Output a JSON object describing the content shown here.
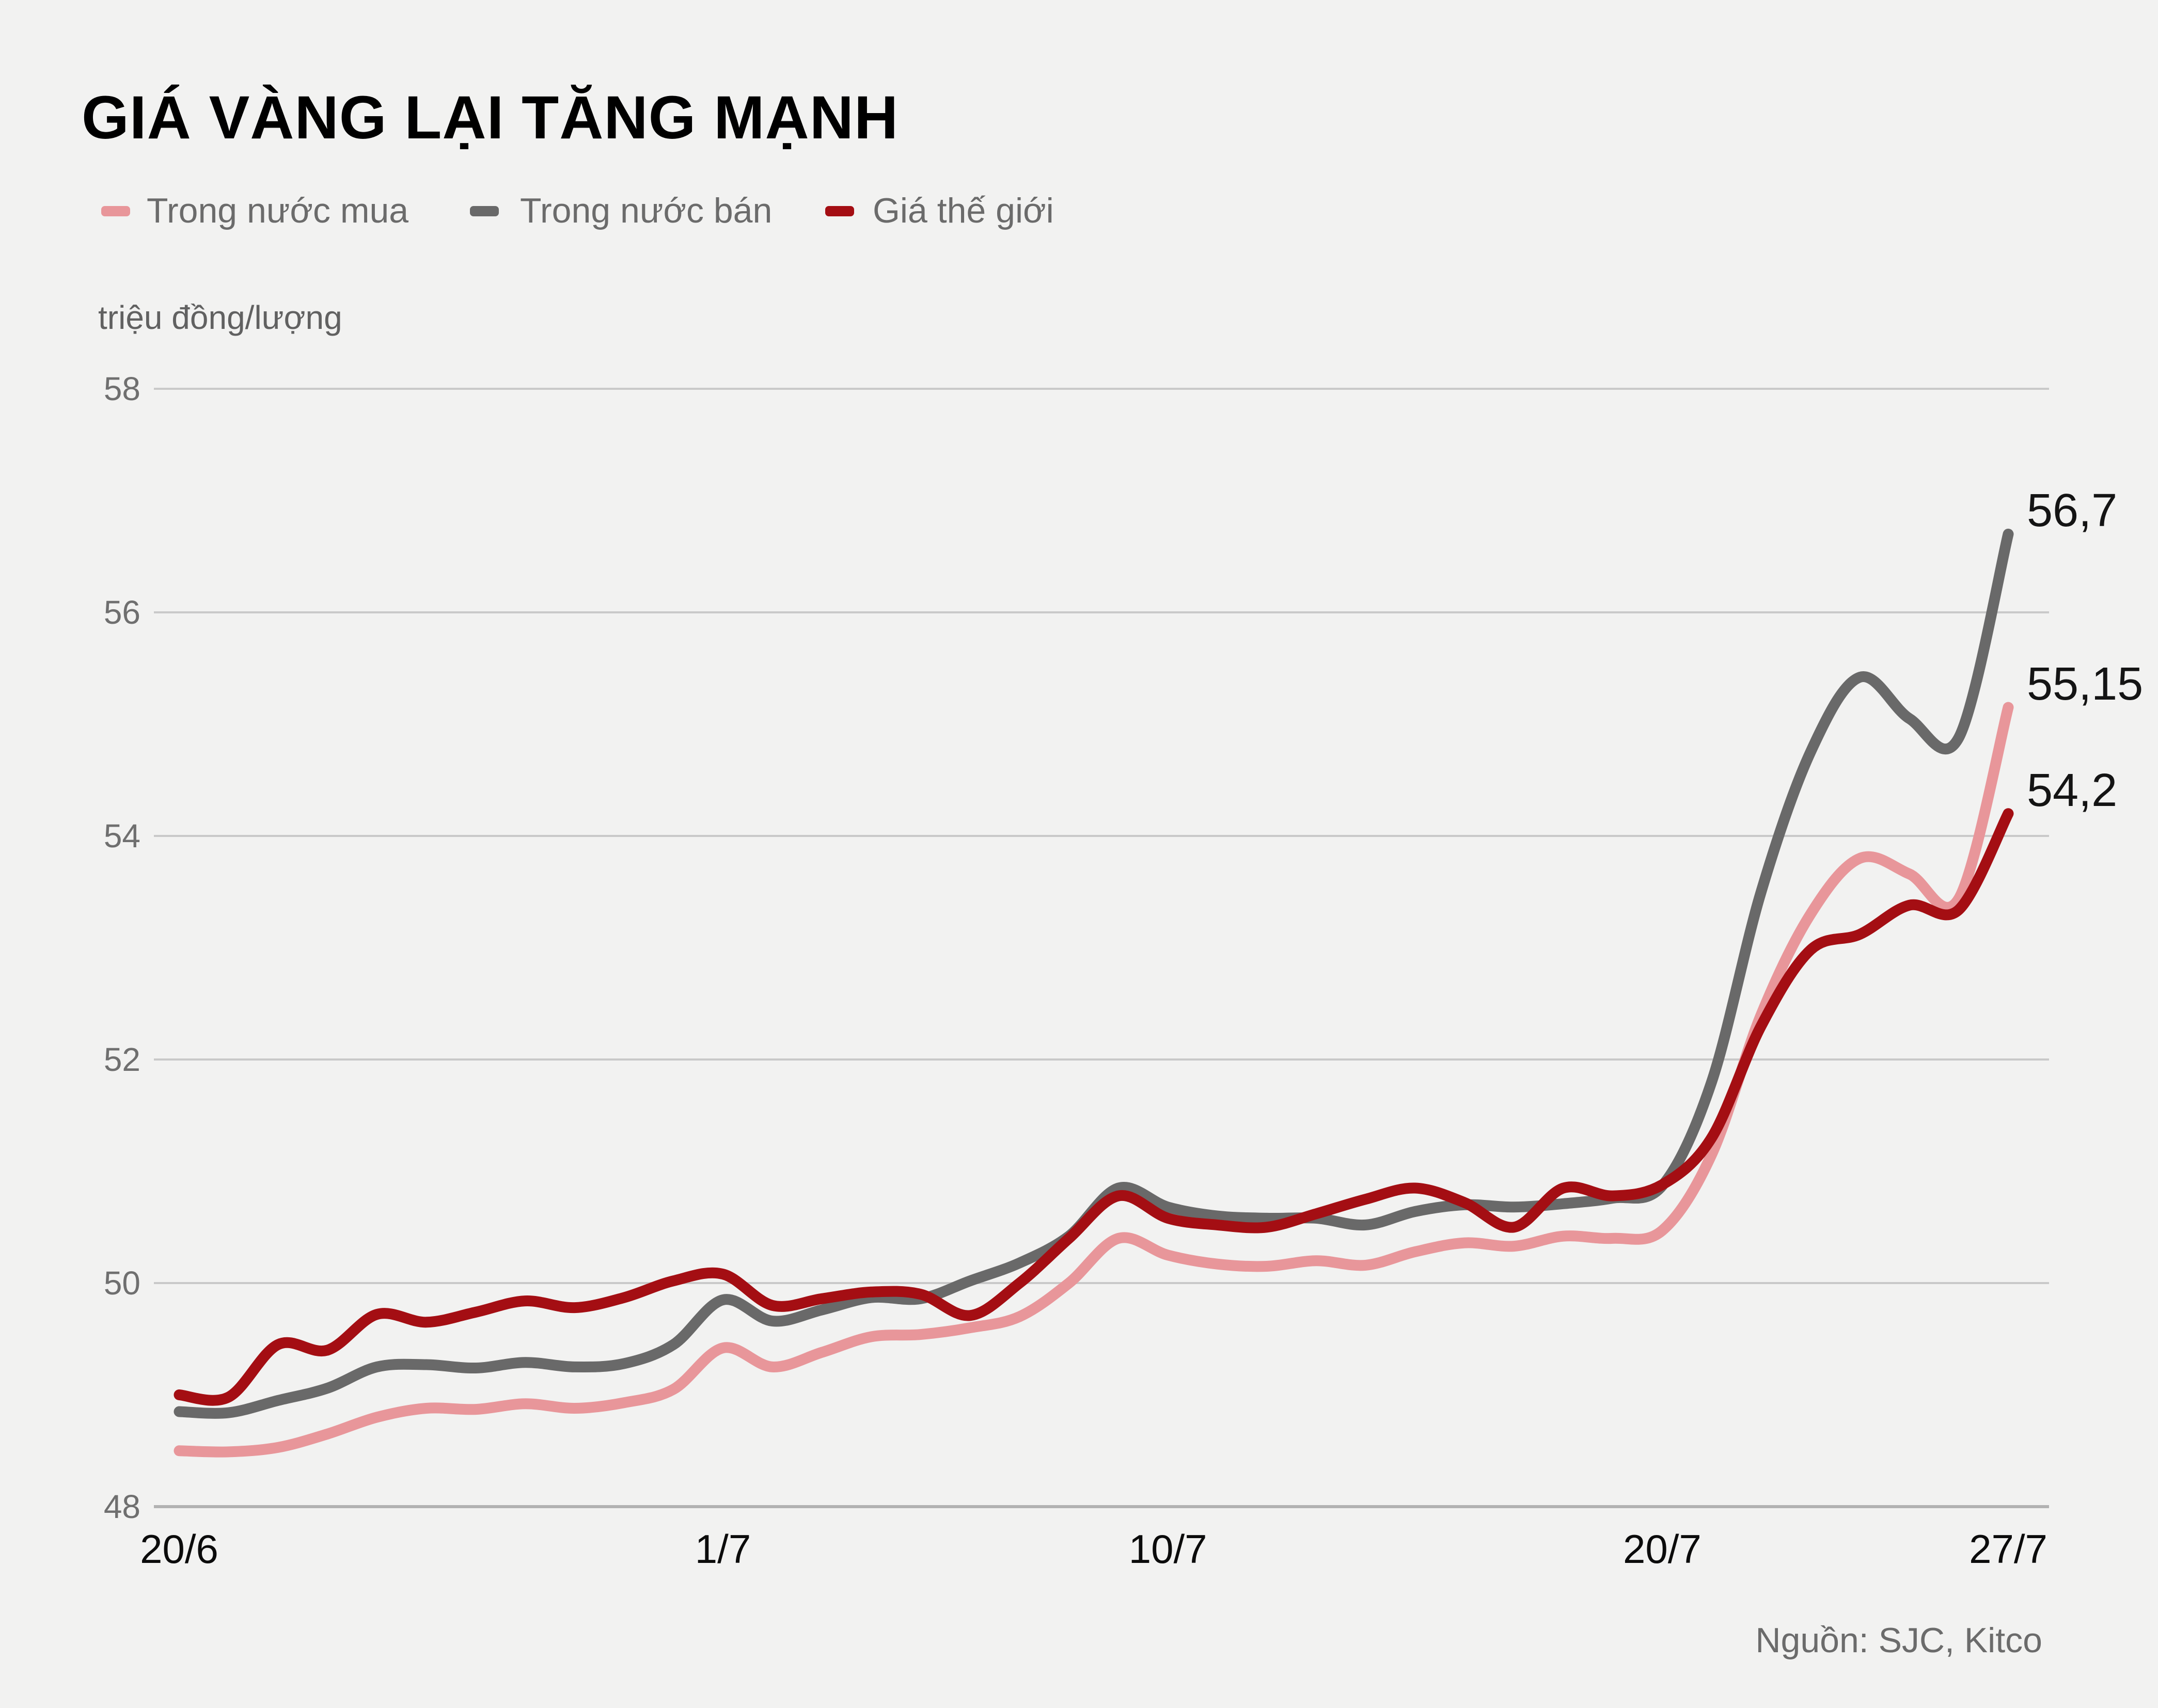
{
  "title": "GIÁ VÀNG LẠI TĂNG MẠNH",
  "source": {
    "label": "Nguồn: SJC, Kitco"
  },
  "colors": {
    "background": "#F2F2F1",
    "gridline": "#C9C9C9",
    "grid_baseline": "#B2B2B2",
    "buy_line": "#E8969A",
    "sell_line": "#696969",
    "world_line": "#A40E13",
    "text_muted": "#6B6B6B",
    "text_dark": "#0B0B0B"
  },
  "chart_data": {
    "type": "line",
    "title": "GIÁ VÀNG LẠI TĂNG MẠNH",
    "unit_label": "triệu đồng/lượng",
    "legend_position": "top-left",
    "grid": true,
    "x": {
      "tick_labels": [
        "20/6",
        "1/7",
        "10/7",
        "20/7",
        "27/7"
      ],
      "tick_day_index": [
        0,
        11,
        20,
        30,
        37
      ],
      "days_total": 37,
      "start_date": "20/6",
      "end_date": "27/7"
    },
    "y": {
      "ticks": [
        58,
        56,
        54,
        52,
        50,
        48
      ],
      "range": [
        48,
        58
      ]
    },
    "series": [
      {
        "name": "Trong nước mua",
        "key": "trong-nuoc-mua",
        "color": "#E8969A",
        "end_label": "55,15",
        "end_value": 55.15,
        "values": [
          48.5,
          48.49,
          48.53,
          48.65,
          48.8,
          48.88,
          48.87,
          48.92,
          48.88,
          48.93,
          49.05,
          49.42,
          49.25,
          49.38,
          49.52,
          49.54,
          49.6,
          49.7,
          50.0,
          50.4,
          50.25,
          50.17,
          50.15,
          50.2,
          50.16,
          50.28,
          50.36,
          50.33,
          50.42,
          50.4,
          50.47,
          51.15,
          52.4,
          53.3,
          53.8,
          53.66,
          53.44,
          55.15
        ]
      },
      {
        "name": "Trong nước bán",
        "key": "trong-nuoc-ban",
        "color": "#696969",
        "end_label": "56,7",
        "end_value": 56.7,
        "values": [
          48.85,
          48.84,
          48.95,
          49.06,
          49.25,
          49.27,
          49.24,
          49.29,
          49.25,
          49.28,
          49.45,
          49.85,
          49.66,
          49.76,
          49.87,
          49.86,
          50.02,
          50.18,
          50.42,
          50.85,
          50.68,
          50.6,
          50.58,
          50.58,
          50.52,
          50.64,
          50.7,
          50.68,
          50.71,
          50.76,
          50.87,
          51.8,
          53.5,
          54.75,
          55.42,
          55.05,
          54.88,
          56.7
        ]
      },
      {
        "name": "Giá thế giới",
        "key": "gia-the-gioi",
        "color": "#A40E13",
        "end_label": "54,2",
        "end_value": 54.2,
        "values": [
          49.0,
          48.98,
          49.45,
          49.4,
          49.72,
          49.65,
          49.74,
          49.84,
          49.78,
          49.87,
          50.02,
          50.08,
          49.8,
          49.86,
          49.92,
          49.9,
          49.71,
          50.0,
          50.4,
          50.78,
          50.58,
          50.52,
          50.5,
          50.62,
          50.75,
          50.85,
          50.72,
          50.5,
          50.85,
          50.78,
          50.88,
          51.3,
          52.3,
          52.98,
          53.12,
          53.38,
          53.34,
          54.2
        ]
      }
    ]
  }
}
